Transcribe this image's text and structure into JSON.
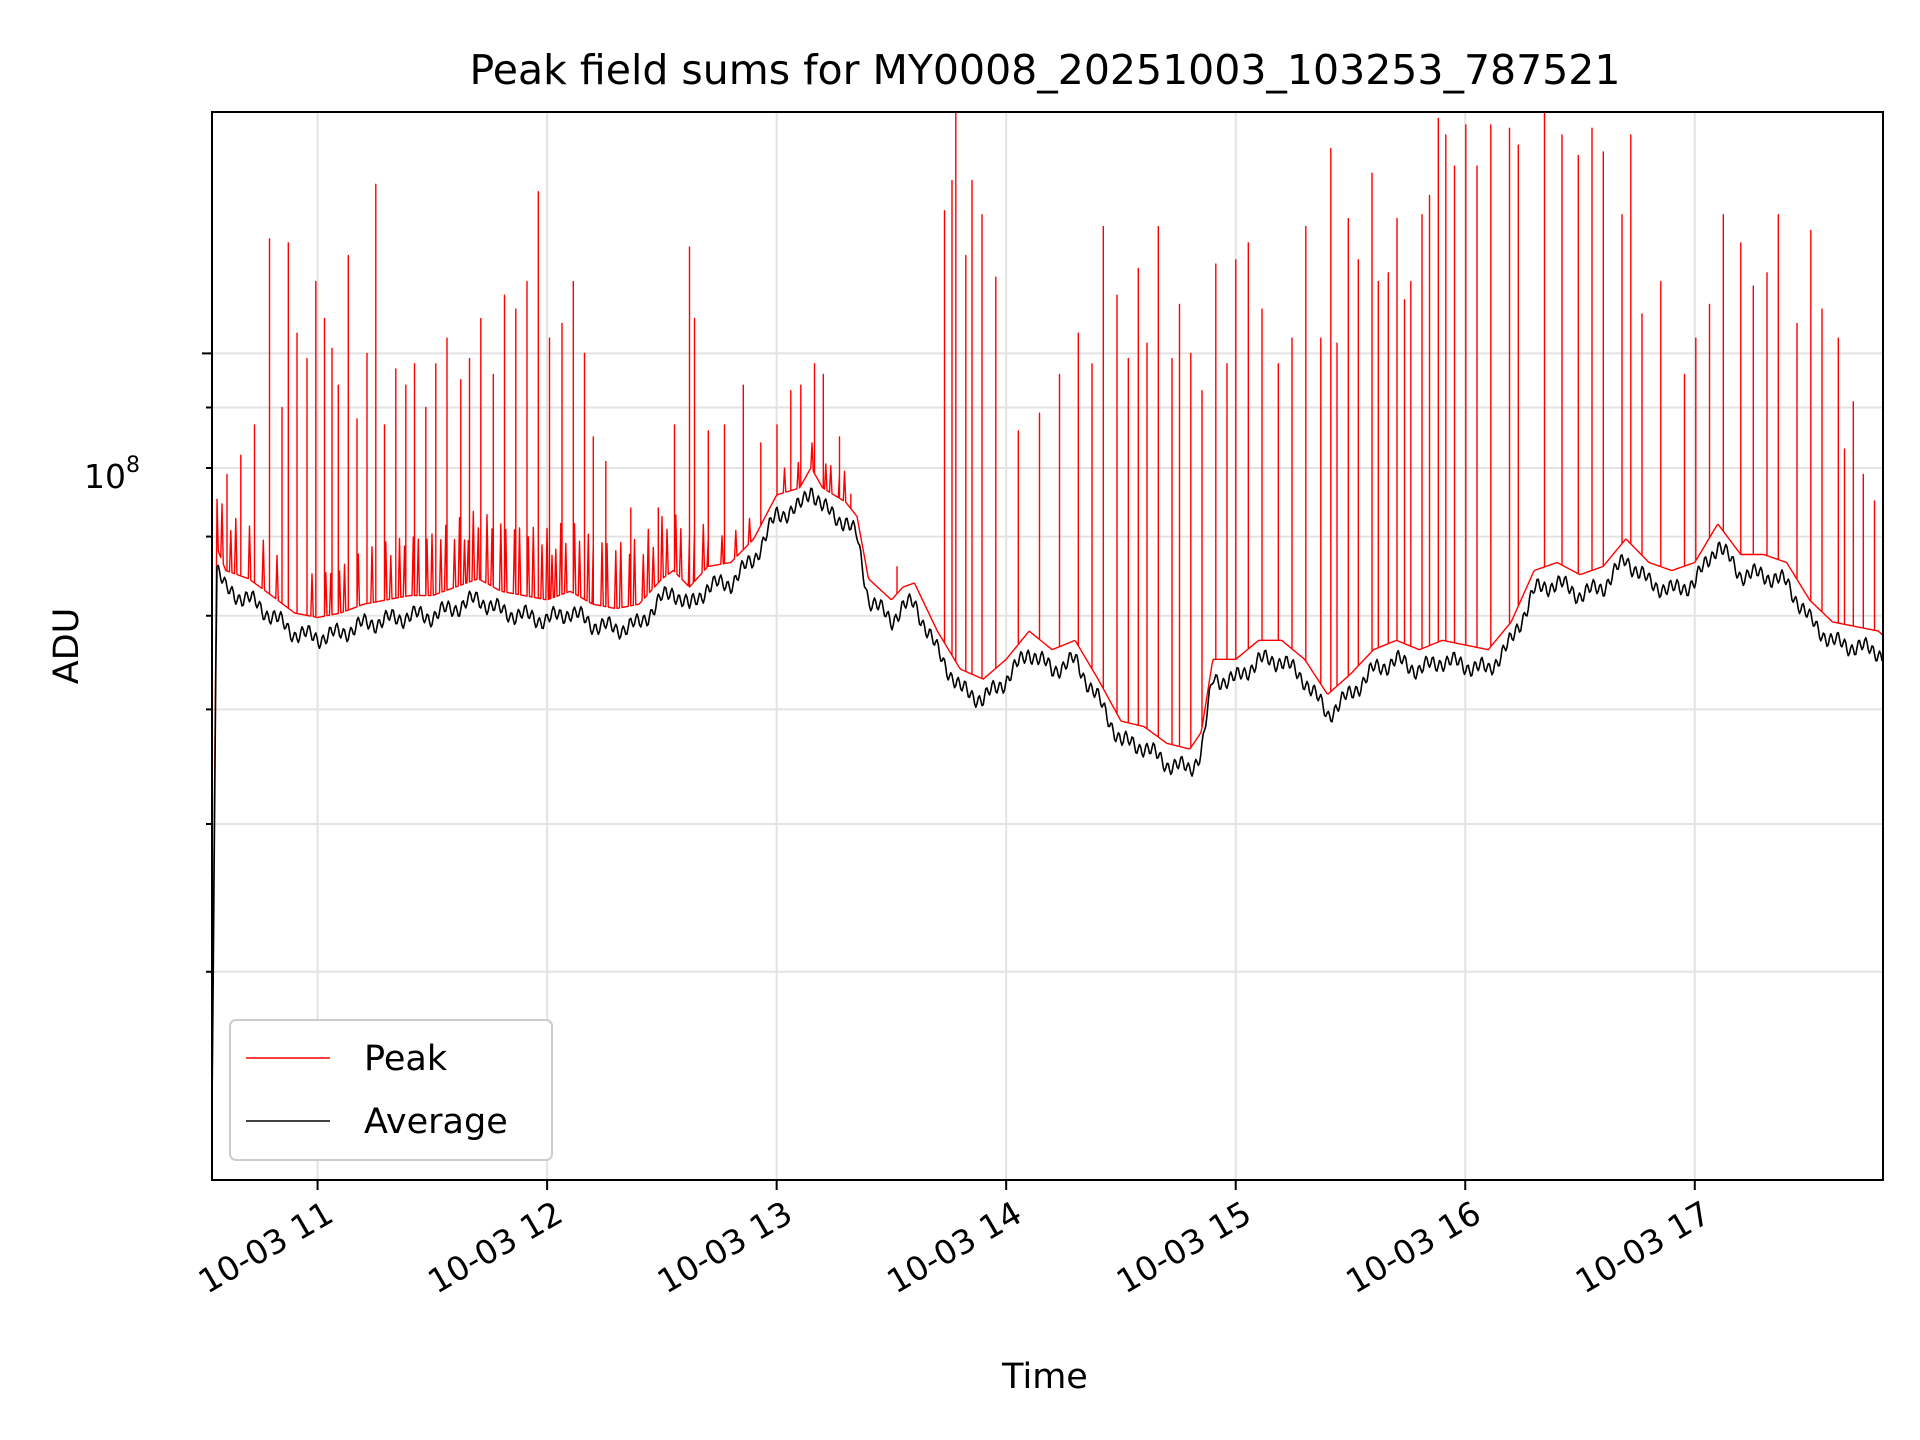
{
  "chart_data": {
    "type": "line",
    "title": "Peak field sums for MY0008_20251003_103253_787521",
    "xlabel": "Time",
    "ylabel": "ADU",
    "y_scale": "log",
    "y_tick_label": {
      "base": "10",
      "exponent": "8",
      "value": 100000000
    },
    "ylim": [
      20000000,
      160000000
    ],
    "xlim_hours": [
      10.54,
      17.82
    ],
    "x_ticks": [
      {
        "hour": 11,
        "label": "10-03 11"
      },
      {
        "hour": 12,
        "label": "10-03 12"
      },
      {
        "hour": 13,
        "label": "10-03 13"
      },
      {
        "hour": 14,
        "label": "10-03 14"
      },
      {
        "hour": 15,
        "label": "10-03 15"
      },
      {
        "hour": 16,
        "label": "10-03 16"
      },
      {
        "hour": 17,
        "label": "10-03 17"
      }
    ],
    "y_minor_ticks": [
      30000000,
      40000000,
      50000000,
      60000000,
      70000000,
      80000000,
      90000000,
      200000000
    ],
    "grid": true,
    "legend": {
      "position": "lower-left",
      "entries": [
        {
          "name": "Peak",
          "color": "#ff0000"
        },
        {
          "name": "Average",
          "color": "#000000"
        }
      ]
    },
    "series": [
      {
        "name": "Average",
        "color": "#000000",
        "x": [
          10.54,
          10.56,
          10.6,
          10.7,
          10.8,
          10.9,
          11.0,
          11.1,
          11.2,
          11.3,
          11.4,
          11.5,
          11.6,
          11.7,
          11.8,
          11.9,
          12.0,
          12.1,
          12.2,
          12.3,
          12.4,
          12.5,
          12.55,
          12.62,
          12.7,
          12.8,
          12.9,
          13.0,
          13.1,
          13.15,
          13.2,
          13.3,
          13.35,
          13.4,
          13.5,
          13.55,
          13.6,
          13.7,
          13.8,
          13.9,
          14.0,
          14.1,
          14.2,
          14.3,
          14.4,
          14.5,
          14.6,
          14.7,
          14.8,
          14.85,
          14.9,
          15.0,
          15.1,
          15.2,
          15.3,
          15.4,
          15.5,
          15.6,
          15.7,
          15.8,
          15.9,
          16.0,
          16.1,
          16.2,
          16.3,
          16.4,
          16.5,
          16.6,
          16.7,
          16.8,
          16.9,
          17.0,
          17.1,
          17.2,
          17.3,
          17.4,
          17.5,
          17.6,
          17.7,
          17.8,
          17.82
        ],
        "y": [
          23000000,
          66000000,
          63000000,
          62000000,
          60000000,
          58000000,
          57500000,
          58000000,
          59000000,
          59500000,
          60000000,
          60000000,
          61000000,
          62000000,
          60500000,
          60000000,
          59500000,
          60500000,
          59000000,
          58500000,
          59000000,
          62000000,
          63000000,
          61000000,
          63500000,
          64000000,
          67000000,
          73000000,
          74000000,
          77000000,
          74000000,
          72000000,
          70000000,
          62000000,
          59500000,
          61000000,
          61500000,
          56000000,
          52000000,
          51000000,
          53000000,
          56000000,
          54000000,
          55000000,
          51000000,
          47000000,
          46500000,
          45000000,
          44500000,
          46000000,
          53000000,
          53000000,
          55000000,
          55000000,
          53000000,
          49500000,
          51500000,
          54000000,
          55000000,
          54000000,
          55000000,
          54500000,
          54000000,
          57000000,
          63000000,
          64000000,
          62500000,
          63500000,
          67000000,
          64000000,
          63000000,
          64000000,
          69000000,
          65000000,
          65000000,
          64000000,
          59500000,
          57000000,
          56500000,
          56000000,
          55500000
        ]
      },
      {
        "name": "Peak",
        "color": "#ff0000",
        "baseline_offset": 1.04,
        "spikes": {
          "x": [
            10.6,
            10.66,
            10.72,
            10.79,
            10.84,
            10.87,
            10.91,
            10.95,
            10.99,
            11.03,
            11.06,
            11.09,
            11.13,
            11.17,
            11.21,
            11.25,
            11.29,
            11.34,
            11.38,
            11.42,
            11.47,
            11.51,
            11.56,
            11.62,
            11.66,
            11.71,
            11.76,
            11.81,
            11.86,
            11.91,
            11.96,
            12.01,
            12.06,
            12.11,
            12.16,
            12.2,
            12.25,
            12.36,
            12.48,
            12.55,
            12.62,
            12.64,
            12.7,
            12.77,
            12.85,
            12.93,
            13.0,
            13.06,
            13.1,
            13.16,
            13.2,
            13.27,
            13.32,
            13.52,
            13.73,
            13.76,
            13.78,
            13.82,
            13.85,
            13.89,
            13.95,
            14.05,
            14.14,
            14.23,
            14.31,
            14.37,
            14.42,
            14.48,
            14.53,
            14.57,
            14.61,
            14.66,
            14.72,
            14.75,
            14.8,
            14.85,
            14.91,
            14.96,
            15.0,
            15.05,
            15.11,
            15.18,
            15.24,
            15.3,
            15.37,
            15.41,
            15.44,
            15.49,
            15.53,
            15.59,
            15.62,
            15.66,
            15.7,
            15.73,
            15.76,
            15.81,
            15.84,
            15.88,
            15.91,
            15.95,
            16.0,
            16.05,
            16.11,
            16.19,
            16.23,
            16.34,
            16.42,
            16.49,
            16.55,
            16.6,
            16.68,
            16.72,
            16.77,
            16.85,
            16.95,
            17.0,
            17.06,
            17.12,
            17.2,
            17.25,
            17.31,
            17.36,
            17.44,
            17.5,
            17.55,
            17.62,
            17.65,
            17.69,
            17.73,
            17.78
          ],
          "y": [
            79000000,
            82000000,
            87000000,
            125000000,
            90000000,
            124000000,
            104000000,
            99000000,
            115000000,
            107000000,
            101000000,
            94000000,
            121000000,
            88000000,
            100000000,
            139000000,
            87000000,
            97000000,
            94000000,
            98000000,
            90000000,
            98000000,
            103000000,
            95000000,
            99000000,
            107000000,
            96000000,
            112000000,
            109000000,
            115000000,
            137000000,
            103000000,
            106000000,
            115000000,
            100000000,
            85000000,
            81000000,
            74000000,
            74000000,
            87000000,
            123000000,
            107000000,
            86000000,
            87000000,
            94000000,
            84000000,
            87000000,
            93000000,
            94000000,
            98000000,
            96000000,
            85000000,
            76000000,
            66000000,
            132000000,
            140000000,
            160000000,
            121000000,
            140000000,
            131000000,
            116000000,
            86000000,
            89000000,
            96000000,
            104000000,
            98000000,
            128000000,
            112000000,
            99000000,
            118000000,
            102000000,
            128000000,
            99000000,
            110000000,
            100000000,
            93000000,
            119000000,
            98000000,
            120000000,
            124000000,
            109000000,
            98000000,
            103000000,
            128000000,
            103000000,
            149000000,
            102000000,
            130000000,
            120000000,
            142000000,
            115000000,
            117000000,
            130000000,
            111000000,
            115000000,
            131000000,
            136000000,
            158000000,
            153000000,
            144000000,
            156000000,
            144000000,
            156000000,
            155000000,
            150000000,
            178000000,
            153000000,
            147000000,
            155000000,
            148000000,
            131000000,
            153000000,
            108000000,
            115000000,
            96000000,
            103000000,
            110000000,
            131000000,
            124000000,
            114000000,
            117000000,
            131000000,
            106000000,
            127000000,
            109000000,
            103000000,
            83000000,
            91000000,
            79000000,
            75000000
          ]
        }
      }
    ]
  }
}
